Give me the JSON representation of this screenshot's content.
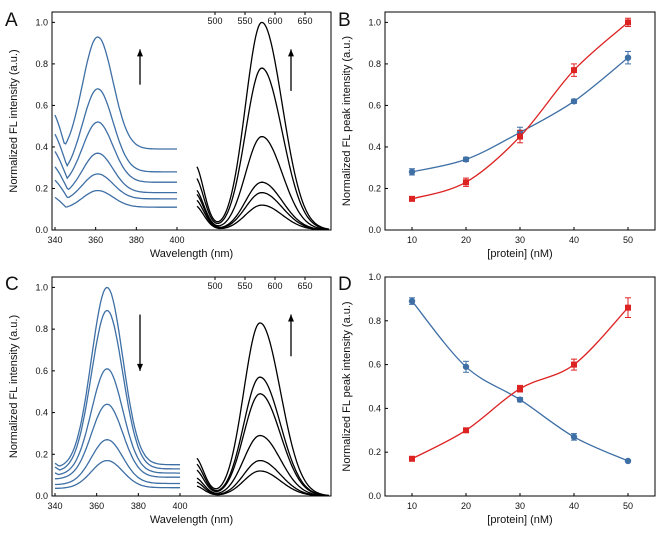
{
  "colors": {
    "blue": "#3e6fa5",
    "red": "#dd2222",
    "black": "#000000",
    "axis": "#000000"
  },
  "chart_data": [
    {
      "panel": "A",
      "type": "line",
      "xlabel": "Wavelength (nm)",
      "ylabel": "Normalized FL intensity (a.u.)",
      "ylim": [
        0,
        1.05
      ],
      "yticks": [
        "0.0",
        "0.2",
        "0.4",
        "0.6",
        "0.8",
        "1.0"
      ],
      "arrow_left": "up",
      "arrow_right": "up",
      "left_axis": {
        "range": [
          340,
          400
        ],
        "ticks": [
          "340",
          "360",
          "380",
          "400"
        ],
        "peak_x": 361,
        "start_x": 340,
        "end_x": 400,
        "curves": [
          {
            "start": 0.6,
            "peak": 0.93,
            "end": 0.39
          },
          {
            "start": 0.5,
            "peak": 0.68,
            "end": 0.28
          },
          {
            "start": 0.41,
            "peak": 0.52,
            "end": 0.23
          },
          {
            "start": 0.33,
            "peak": 0.37,
            "end": 0.18
          },
          {
            "start": 0.26,
            "peak": 0.27,
            "end": 0.15
          },
          {
            "start": 0.17,
            "peak": 0.19,
            "end": 0.11
          }
        ]
      },
      "right_axis": {
        "range": [
          470,
          690
        ],
        "ticks": [
          "500",
          "550",
          "600",
          "650"
        ],
        "peak_x": 578,
        "curves": [
          {
            "start": 0.32,
            "peak": 1.0
          },
          {
            "start": 0.26,
            "peak": 0.78
          },
          {
            "start": 0.2,
            "peak": 0.45
          },
          {
            "start": 0.18,
            "peak": 0.23
          },
          {
            "start": 0.15,
            "peak": 0.18
          },
          {
            "start": 0.12,
            "peak": 0.12
          }
        ]
      }
    },
    {
      "panel": "B",
      "type": "scatter",
      "xlabel": "[protein] (nM)",
      "ylabel": "Normalized FL peak intensity (a.u.)",
      "xlim": [
        5,
        55
      ],
      "ylim": [
        0,
        1.05
      ],
      "xticks": [
        "10",
        "20",
        "30",
        "40",
        "50"
      ],
      "yticks": [
        "0.0",
        "0.2",
        "0.4",
        "0.6",
        "0.8",
        "1.0"
      ],
      "x": [
        10,
        20,
        30,
        40,
        50
      ],
      "series": [
        {
          "color": "blue",
          "values": [
            0.28,
            0.34,
            0.47,
            0.62,
            0.83
          ],
          "errors": [
            0.015,
            0.01,
            0.025,
            0.01,
            0.03
          ]
        },
        {
          "color": "red",
          "values": [
            0.15,
            0.23,
            0.45,
            0.77,
            1.0
          ],
          "errors": [
            0.01,
            0.02,
            0.03,
            0.03,
            0.02
          ]
        }
      ]
    },
    {
      "panel": "C",
      "type": "line",
      "xlabel": "Wavelength (nm)",
      "ylabel": "Normalized FL intensity (a.u.)",
      "ylim": [
        0,
        1.05
      ],
      "yticks": [
        "0.0",
        "0.2",
        "0.4",
        "0.6",
        "0.8",
        "1.0"
      ],
      "arrow_left": "down",
      "arrow_right": "up",
      "left_axis": {
        "range": [
          340,
          400
        ],
        "ticks": [
          "340",
          "360",
          "380",
          "400"
        ],
        "peak_x": 365,
        "start_x": 340,
        "end_x": 400,
        "curves": [
          {
            "start": 0.17,
            "peak": 1.0,
            "end": 0.15
          },
          {
            "start": 0.15,
            "peak": 0.89,
            "end": 0.13
          },
          {
            "start": 0.12,
            "peak": 0.61,
            "end": 0.11
          },
          {
            "start": 0.09,
            "peak": 0.44,
            "end": 0.09
          },
          {
            "start": 0.06,
            "peak": 0.27,
            "end": 0.06
          },
          {
            "start": 0.04,
            "peak": 0.17,
            "end": 0.04
          }
        ]
      },
      "right_axis": {
        "range": [
          470,
          690
        ],
        "ticks": [
          "500",
          "550",
          "600",
          "650"
        ],
        "peak_x": 575,
        "curves": [
          {
            "start": 0.19,
            "peak": 0.83
          },
          {
            "start": 0.16,
            "peak": 0.57
          },
          {
            "start": 0.13,
            "peak": 0.49
          },
          {
            "start": 0.09,
            "peak": 0.29
          },
          {
            "start": 0.07,
            "peak": 0.17
          },
          {
            "start": 0.05,
            "peak": 0.12
          }
        ]
      }
    },
    {
      "panel": "D",
      "type": "scatter",
      "xlabel": "[protein] (nM)",
      "ylabel": "Normalized FL peak intensity (a.u.)",
      "xlim": [
        5,
        55
      ],
      "ylim": [
        0,
        1.0
      ],
      "xticks": [
        "10",
        "20",
        "30",
        "40",
        "50"
      ],
      "yticks": [
        "0.0",
        "0.2",
        "0.4",
        "0.6",
        "0.8",
        "1.0"
      ],
      "x": [
        10,
        20,
        30,
        40,
        50
      ],
      "series": [
        {
          "color": "blue",
          "values": [
            0.89,
            0.59,
            0.44,
            0.27,
            0.16
          ],
          "errors": [
            0.015,
            0.025,
            0.01,
            0.015,
            0.005
          ]
        },
        {
          "color": "red",
          "values": [
            0.17,
            0.3,
            0.49,
            0.6,
            0.86
          ],
          "errors": [
            0.01,
            0.01,
            0.015,
            0.025,
            0.045
          ]
        }
      ]
    }
  ]
}
